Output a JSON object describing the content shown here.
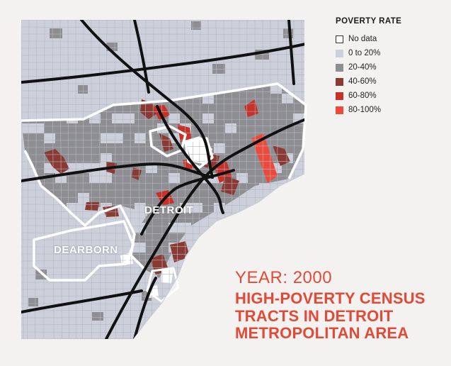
{
  "colors": {
    "background": "#f3f2f1",
    "no_data": "#ffffff",
    "bin_0_20": "#cdd0db",
    "bin_20_40": "#8e8e92",
    "bin_40_60": "#8a3a33",
    "bin_60_80": "#c73128",
    "bin_80_100": "#ee4a3c",
    "highway": "#111111",
    "city_boundary": "#ffffff",
    "water": "#f3f2f1",
    "accent_text": "#e24a37"
  },
  "legend": {
    "title": "POVERTY RATE",
    "items": [
      {
        "label": "No data",
        "color": "#ffffff",
        "bordered": true
      },
      {
        "label": "0 to 20%",
        "color": "#cdd0db",
        "bordered": false
      },
      {
        "label": "20-40%",
        "color": "#8e8e92",
        "bordered": false
      },
      {
        "label": "40-60%",
        "color": "#8a3a33",
        "bordered": false
      },
      {
        "label": "60-80%",
        "color": "#c73128",
        "bordered": false
      },
      {
        "label": "80-100%",
        "color": "#ee4a3c",
        "bordered": false
      }
    ]
  },
  "map": {
    "place_labels": {
      "detroit": "DETROIT",
      "dearborn": "DEARBORN"
    }
  },
  "caption": {
    "year": "YEAR: 2000",
    "headline_lines": [
      "HIGH-POVERTY CENSUS",
      "TRACTS IN DETROIT",
      "METROPOLITAN AREA"
    ]
  }
}
